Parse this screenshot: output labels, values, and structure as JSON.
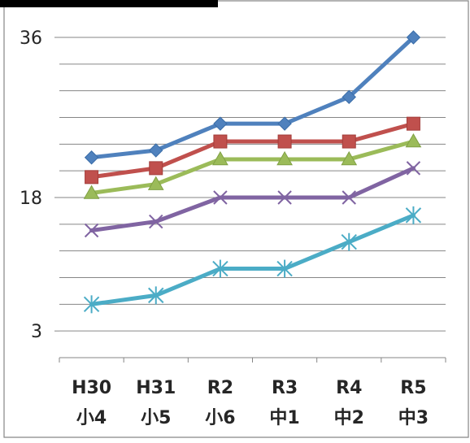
{
  "chart_data": {
    "type": "line",
    "categories": [
      {
        "line1": "H30",
        "line2": "小4"
      },
      {
        "line1": "H31",
        "line2": "小5"
      },
      {
        "line1": "R2",
        "line2": "小6"
      },
      {
        "line1": "R3",
        "line2": "中1"
      },
      {
        "line1": "R4",
        "line2": "中2"
      },
      {
        "line1": "R5",
        "line2": "中3"
      }
    ],
    "y_tick_labels": [
      {
        "value": 36,
        "label": "36"
      },
      {
        "value": 18,
        "label": "18"
      },
      {
        "value": 3,
        "label": "3"
      }
    ],
    "ylim": [
      0,
      36
    ],
    "gridline_step": 3,
    "grid": true,
    "legend": "none",
    "series": [
      {
        "marker": "diamond",
        "color": "#4F81BD",
        "values": [
          22.5,
          23.3,
          26.3,
          26.3,
          29.3,
          36
        ]
      },
      {
        "marker": "square",
        "color": "#C0504D",
        "values": [
          20.3,
          21.3,
          24.3,
          24.3,
          24.3,
          26.3
        ]
      },
      {
        "marker": "triangle",
        "color": "#9BBB59",
        "values": [
          18.5,
          19.5,
          22.3,
          22.3,
          22.3,
          24.3
        ]
      },
      {
        "marker": "x",
        "color": "#8064A2",
        "values": [
          14.3,
          15.3,
          18,
          18,
          18,
          21.3
        ]
      },
      {
        "marker": "star",
        "color": "#4BACC6",
        "values": [
          6,
          7,
          10,
          10,
          13,
          16
        ]
      }
    ]
  }
}
